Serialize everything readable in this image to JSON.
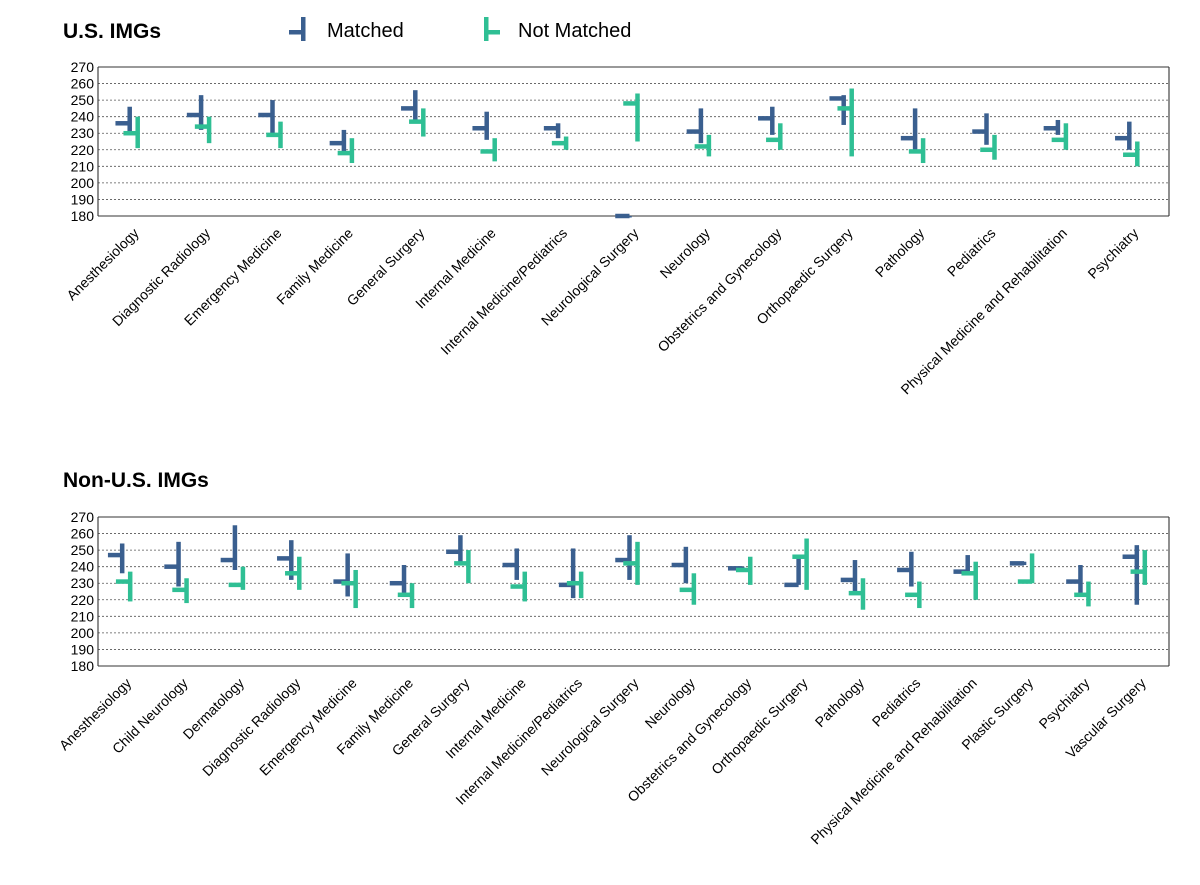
{
  "legend": {
    "matched_label": "Matched",
    "not_matched_label": "Not Matched"
  },
  "colors": {
    "matched": "#3a5f8f",
    "not_matched": "#2fbf94",
    "grid": "#555555"
  },
  "chart_data": [
    {
      "type": "range",
      "title": "U.S. IMGs",
      "ylim": [
        180,
        270
      ],
      "yticks": [
        180,
        190,
        200,
        210,
        220,
        230,
        240,
        250,
        260,
        270
      ],
      "grid": true,
      "categories": [
        "Anesthesiology",
        "Diagnostic Radiology",
        "Emergency Medicine",
        "Family Medicine",
        "General Surgery",
        "Internal Medicine",
        "Internal Medicine/Pediatrics",
        "Neurological Surgery",
        "Neurology",
        "Obstetrics and Gynecology",
        "Orthopaedic Surgery",
        "Pathology",
        "Pediatrics",
        "Physical Medicine and Rehabilitation",
        "Psychiatry"
      ],
      "series": [
        {
          "name": "Matched",
          "median": [
            236,
            241,
            241,
            224,
            245,
            233,
            233,
            180,
            231,
            239,
            251,
            227,
            231,
            233,
            227
          ],
          "low": [
            229,
            232,
            230,
            218,
            236,
            226,
            227,
            180,
            224,
            229,
            235,
            219,
            223,
            229,
            220
          ],
          "high": [
            246,
            253,
            250,
            232,
            256,
            243,
            236,
            180,
            245,
            246,
            253,
            245,
            242,
            238,
            237
          ]
        },
        {
          "name": "Not Matched",
          "median": [
            230,
            234,
            229,
            218,
            237,
            219,
            224,
            248,
            222,
            226,
            245,
            219,
            220,
            226,
            217
          ],
          "low": [
            221,
            224,
            221,
            212,
            228,
            213,
            220,
            225,
            216,
            220,
            216,
            212,
            214,
            220,
            210
          ],
          "high": [
            240,
            240,
            237,
            227,
            245,
            227,
            228,
            254,
            229,
            236,
            257,
            227,
            229,
            236,
            225
          ]
        }
      ]
    },
    {
      "type": "range",
      "title": "Non-U.S. IMGs",
      "ylim": [
        180,
        270
      ],
      "yticks": [
        180,
        190,
        200,
        210,
        220,
        230,
        240,
        250,
        260,
        270
      ],
      "grid": true,
      "categories": [
        "Anesthesiology",
        "Child Neurology",
        "Dermatology",
        "Diagnostic Radiology",
        "Emergency Medicine",
        "Family Medicine",
        "General Surgery",
        "Internal Medicine",
        "Internal Medicine/Pediatrics",
        "Neurological Surgery",
        "Neurology",
        "Obstetrics and Gynecology",
        "Orthopaedic Surgery",
        "Pathology",
        "Pediatrics",
        "Physical Medicine and Rehabilitation",
        "Plastic Surgery",
        "Psychiatry",
        "Vascular Surgery"
      ],
      "series": [
        {
          "name": "Matched",
          "median": [
            247,
            240,
            244,
            245,
            231,
            230,
            249,
            241,
            229,
            244,
            241,
            239,
            229,
            232,
            238,
            237,
            242,
            231,
            246
          ],
          "low": [
            236,
            228,
            238,
            232,
            222,
            222,
            243,
            232,
            221,
            232,
            230,
            237,
            229,
            223,
            228,
            235,
            241,
            223,
            217
          ],
          "high": [
            254,
            255,
            265,
            256,
            248,
            241,
            259,
            251,
            251,
            259,
            252,
            240,
            245,
            244,
            249,
            247,
            243,
            241,
            253
          ]
        },
        {
          "name": "Not Matched",
          "median": [
            231,
            226,
            229,
            236,
            230,
            223,
            242,
            228,
            230,
            242,
            226,
            238,
            246,
            224,
            223,
            236,
            231,
            223,
            237
          ],
          "low": [
            219,
            218,
            226,
            226,
            215,
            215,
            230,
            219,
            221,
            229,
            217,
            229,
            226,
            214,
            215,
            220,
            230,
            216,
            229
          ],
          "high": [
            237,
            233,
            240,
            246,
            238,
            230,
            250,
            237,
            237,
            255,
            236,
            246,
            257,
            233,
            231,
            243,
            248,
            231,
            250
          ]
        }
      ]
    }
  ]
}
